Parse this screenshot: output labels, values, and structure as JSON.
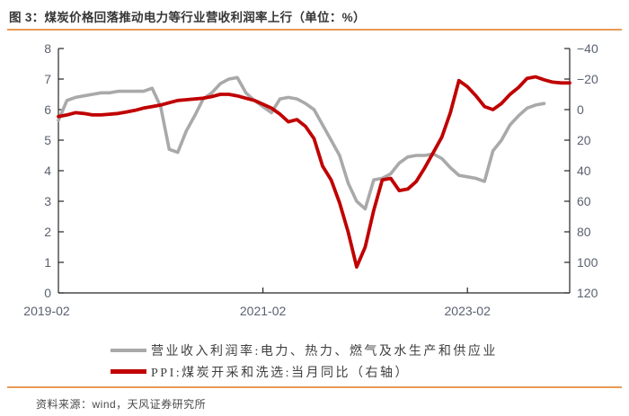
{
  "figure": {
    "title": "图 3：煤炭价格回落推动电力等行业营收利润率上行（单位：%）",
    "source": "资料来源：wind，天风证券研究所"
  },
  "colors": {
    "accent_orange": "#E79A54",
    "series_gray": "#A9A9A9",
    "series_red": "#C00000",
    "axis_line": "#262626",
    "axis_text": "#5A6170",
    "title_text": "#363636",
    "legend_text": "#404040",
    "source_text": "#4A4A4A"
  },
  "legend": [
    {
      "label": "营业收入利润率:电力、热力、燃气及水生产和供应业",
      "series": "profit_margin"
    },
    {
      "label": "PPI:煤炭开采和洗选:当月同比（右轴）",
      "series": "ppi_coal"
    }
  ],
  "chart_data": {
    "type": "line",
    "x_axis": {
      "tick_labels": [
        "2019-02",
        "2021-02",
        "2023-02"
      ],
      "tick_months": [
        0,
        24,
        48
      ],
      "total_months": 60
    },
    "left_axis": {
      "top_value": 8,
      "bottom_value": 0,
      "ticks": [
        0,
        1,
        2,
        3,
        4,
        5,
        6,
        7,
        8
      ]
    },
    "right_axis": {
      "top_value": -40,
      "bottom_value": 120,
      "inverted": true,
      "ticks": [
        -40,
        -20,
        0,
        20,
        40,
        60,
        80,
        100,
        120
      ]
    },
    "series": [
      {
        "name": "营业收入利润率:电力、热力、燃气及水生产和供应业",
        "axis": "left",
        "color": "#A9A9A9",
        "start": "2019-02",
        "values": [
          5.65,
          6.3,
          6.4,
          6.45,
          6.5,
          6.55,
          6.55,
          6.6,
          6.6,
          6.6,
          6.6,
          6.7,
          6.1,
          4.7,
          4.6,
          5.3,
          5.8,
          6.35,
          6.55,
          6.85,
          7.0,
          7.05,
          6.55,
          6.3,
          6.1,
          5.9,
          6.35,
          6.4,
          6.35,
          6.2,
          6.0,
          5.5,
          5.0,
          4.5,
          3.6,
          3.0,
          2.75,
          3.7,
          3.75,
          3.9,
          4.25,
          4.45,
          4.5,
          4.5,
          4.55,
          4.4,
          4.1,
          3.85,
          3.8,
          3.75,
          3.65,
          4.65,
          5.0,
          5.5,
          5.8,
          6.05,
          6.15,
          6.2
        ]
      },
      {
        "name": "PPI:煤炭开采和洗选:当月同比（右轴）",
        "axis": "right",
        "color": "#C00000",
        "start": "2019-02",
        "values": [
          4.5,
          3.5,
          2,
          2.5,
          3.5,
          3.5,
          3,
          2.5,
          1.5,
          0.5,
          -1,
          -2,
          -3,
          -4.5,
          -6,
          -6.5,
          -7,
          -7.5,
          -8.5,
          -10,
          -10,
          -9,
          -7.5,
          -6,
          -3.5,
          -1,
          3,
          8,
          6.5,
          11,
          19,
          37,
          46,
          61,
          80,
          103,
          90,
          66,
          46,
          45,
          53,
          52,
          47,
          38,
          28,
          18,
          2,
          -19,
          -15,
          -9,
          -2,
          0,
          -4,
          -10,
          -14.5,
          -20.5,
          -21.5,
          -19.5,
          -18,
          -17.5,
          -17.5
        ]
      }
    ]
  }
}
